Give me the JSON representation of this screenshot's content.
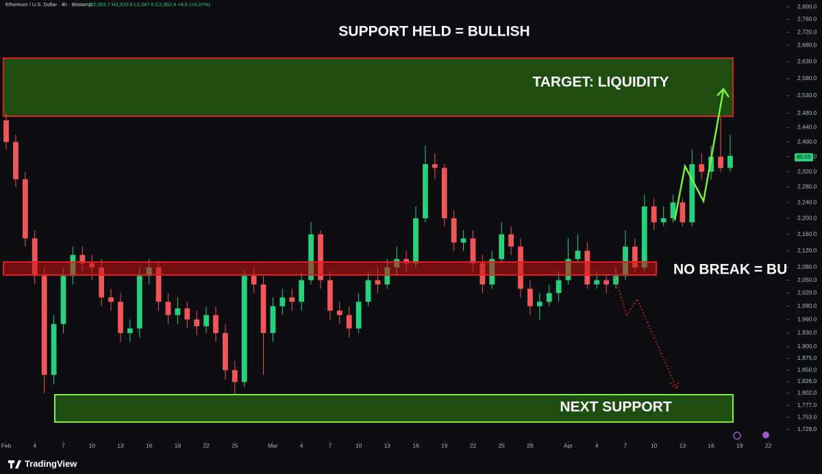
{
  "chart_data": {
    "type": "candlestick",
    "header": "Ethereum / U.S. Dollar · 4h · Bitstamp",
    "ohlc_header": "O2,353.7 H2,370.0 L2,347.0 C2,362.4 +8.6 (+0.37%)",
    "countdown": "40:03",
    "brand": "TradingView",
    "annotations": [
      "SUPPORT HELD = BULLISH",
      "TARGET: LIQUIDITY",
      "NO BREAK = BULL",
      "NEXT SUPPORT"
    ],
    "log_scale": true,
    "grid": false,
    "up_color": "#26d07c",
    "down_color": "#f0555a",
    "ylim": [
      1706,
      2822
    ],
    "yticks": [
      {
        "value": 2800,
        "label": "2,800.0"
      },
      {
        "value": 2760,
        "label": "2,760.0"
      },
      {
        "value": 2720,
        "label": "2,720.0"
      },
      {
        "value": 2680,
        "label": "2,680.0"
      },
      {
        "value": 2630,
        "label": "2,630.0"
      },
      {
        "value": 2580,
        "label": "2,580.0"
      },
      {
        "value": 2530,
        "label": "2,530.0"
      },
      {
        "value": 2480,
        "label": "2,480.0"
      },
      {
        "value": 2440,
        "label": "2,440.0"
      },
      {
        "value": 2400,
        "label": "2,400.0"
      },
      {
        "value": 2360,
        "label": "2,360.0"
      },
      {
        "value": 2320,
        "label": "2,320.0"
      },
      {
        "value": 2280,
        "label": "2,280.0"
      },
      {
        "value": 2240,
        "label": "2,240.0"
      },
      {
        "value": 2200,
        "label": "2,200.0"
      },
      {
        "value": 2160,
        "label": "2,160.0"
      },
      {
        "value": 2120,
        "label": "2,120.0"
      },
      {
        "value": 2080,
        "label": "2,080.0"
      },
      {
        "value": 2050,
        "label": "2,050.0"
      },
      {
        "value": 2020,
        "label": "2,020.0"
      },
      {
        "value": 1990,
        "label": "1,990.0"
      },
      {
        "value": 1960,
        "label": "1,960.0"
      },
      {
        "value": 1930,
        "label": "1,930.0"
      },
      {
        "value": 1900,
        "label": "1,900.0"
      },
      {
        "value": 1875,
        "label": "1,875.0"
      },
      {
        "value": 1850,
        "label": "1,850.0"
      },
      {
        "value": 1826,
        "label": "1,826.0"
      },
      {
        "value": 1802,
        "label": "1,802.0"
      },
      {
        "value": 1777,
        "label": "1,777.0"
      },
      {
        "value": 1753,
        "label": "1,753.0"
      },
      {
        "value": 1729,
        "label": "1,729.0"
      }
    ],
    "xlim": [
      -0.65,
      81.9
    ],
    "xticks": [
      {
        "value": 0,
        "label": "Feb"
      },
      {
        "value": 3,
        "label": "4"
      },
      {
        "value": 6,
        "label": "7"
      },
      {
        "value": 9,
        "label": "10"
      },
      {
        "value": 12,
        "label": "13"
      },
      {
        "value": 15,
        "label": "16"
      },
      {
        "value": 18,
        "label": "19"
      },
      {
        "value": 21,
        "label": "22"
      },
      {
        "value": 24,
        "label": "25"
      },
      {
        "value": 28,
        "label": "Mar"
      },
      {
        "value": 31,
        "label": "4"
      },
      {
        "value": 34,
        "label": "7"
      },
      {
        "value": 37,
        "label": "10"
      },
      {
        "value": 40,
        "label": "13"
      },
      {
        "value": 43,
        "label": "16"
      },
      {
        "value": 46,
        "label": "19"
      },
      {
        "value": 49,
        "label": "22"
      },
      {
        "value": 52,
        "label": "25"
      },
      {
        "value": 55,
        "label": "28"
      },
      {
        "value": 59,
        "label": "Apr"
      },
      {
        "value": 62,
        "label": "4"
      },
      {
        "value": 65,
        "label": "7"
      },
      {
        "value": 68,
        "label": "10"
      },
      {
        "value": 71,
        "label": "13"
      },
      {
        "value": 74,
        "label": "16"
      },
      {
        "value": 77,
        "label": "19"
      },
      {
        "value": 80,
        "label": "22"
      }
    ],
    "open": [
      2460,
      2400,
      2300,
      2150,
      2060,
      1840,
      1950,
      2060,
      2110,
      2090,
      2080,
      2010,
      2000,
      1930,
      1940,
      2060,
      2080,
      2000,
      1970,
      1985,
      1960,
      1945,
      1970,
      1930,
      1850,
      1825,
      2060,
      2040,
      1930,
      1990,
      2010,
      2000,
      2050,
      2160,
      2050,
      1980,
      1970,
      1940,
      2000,
      2050,
      2040,
      2080,
      2100,
      2090,
      2200,
      2340,
      2330,
      2200,
      2140,
      2150,
      2090,
      2040,
      2100,
      2160,
      2130,
      2030,
      1990,
      2000,
      2020,
      2050,
      2100,
      2120,
      2040,
      2050,
      2040,
      2060,
      2130,
      2080,
      2230,
      2190,
      2200,
      2240,
      2190,
      2340,
      2320,
      2360,
      2330
    ],
    "high": [
      2480,
      2420,
      2320,
      2170,
      2080,
      1970,
      2080,
      2130,
      2130,
      2110,
      2100,
      2030,
      2020,
      1960,
      2080,
      2100,
      2095,
      2020,
      2010,
      2000,
      1980,
      1990,
      1990,
      1950,
      1870,
      2075,
      2080,
      2060,
      2010,
      2030,
      2030,
      2070,
      2190,
      2170,
      2070,
      2000,
      1990,
      2020,
      2070,
      2080,
      2100,
      2130,
      2120,
      2230,
      2390,
      2370,
      2340,
      2220,
      2170,
      2170,
      2110,
      2120,
      2190,
      2180,
      2150,
      2050,
      2020,
      2040,
      2070,
      2150,
      2160,
      2140,
      2070,
      2060,
      2080,
      2170,
      2150,
      2260,
      2250,
      2230,
      2260,
      2250,
      2380,
      2370,
      2390,
      2470,
      2420
    ],
    "low": [
      2380,
      2280,
      2130,
      2040,
      1802,
      1820,
      1930,
      2040,
      2070,
      2050,
      1990,
      1980,
      1910,
      1910,
      1920,
      2040,
      1980,
      1950,
      1950,
      1940,
      1925,
      1930,
      1910,
      1830,
      1800,
      1815,
      2020,
      1840,
      1910,
      1970,
      1980,
      1980,
      2040,
      2030,
      1960,
      1950,
      1920,
      1930,
      1990,
      2020,
      2030,
      2060,
      2070,
      2080,
      2190,
      2300,
      2180,
      2120,
      2120,
      2070,
      2020,
      2030,
      2090,
      2110,
      2010,
      1970,
      1960,
      1990,
      2000,
      2040,
      2090,
      2030,
      2030,
      2020,
      2030,
      2050,
      2070,
      2070,
      2170,
      2180,
      2190,
      2180,
      2180,
      2300,
      2300,
      2320,
      2320
    ],
    "close": [
      2400,
      2300,
      2150,
      2060,
      1840,
      1950,
      2060,
      2110,
      2090,
      2080,
      2010,
      2000,
      1930,
      1940,
      2060,
      2080,
      2000,
      1970,
      1985,
      1960,
      1945,
      1970,
      1930,
      1850,
      1825,
      2060,
      2040,
      1930,
      1990,
      2010,
      2000,
      2050,
      2160,
      2050,
      1980,
      1970,
      1940,
      2000,
      2050,
      2040,
      2080,
      2100,
      2090,
      2200,
      2340,
      2330,
      2200,
      2140,
      2150,
      2090,
      2040,
      2100,
      2160,
      2130,
      2030,
      1990,
      2000,
      2020,
      2050,
      2100,
      2120,
      2040,
      2050,
      2040,
      2060,
      2130,
      2080,
      2230,
      2190,
      2200,
      2240,
      2190,
      2340,
      2320,
      2360,
      2330,
      2362.4
    ]
  }
}
